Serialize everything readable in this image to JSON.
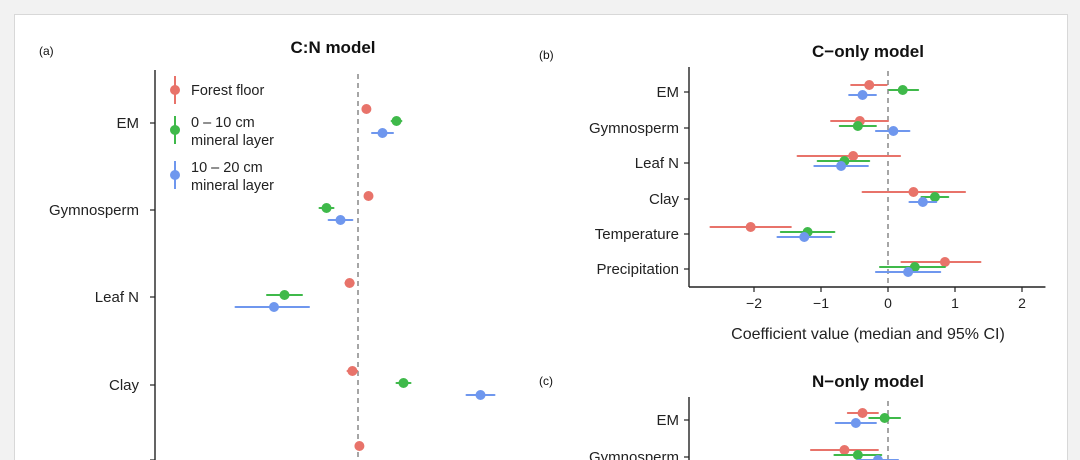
{
  "colors": {
    "forest_floor": "#e8736a",
    "mineral_0_10": "#3fb94a",
    "mineral_10_20": "#6f97ee"
  },
  "chart_data": [
    {
      "panel_label": "(a)",
      "type": "scatter",
      "title": "C:N model",
      "xlabel": "",
      "legend": {
        "placement": "top-left",
        "entries": [
          {
            "key": "forest_floor",
            "lines": [
              "Forest floor"
            ]
          },
          {
            "key": "mineral_0_10",
            "lines": [
              "0 – 10 cm",
              "mineral layer"
            ]
          },
          {
            "key": "mineral_10_20",
            "lines": [
              "10 – 20 cm",
              "mineral layer"
            ]
          }
        ]
      },
      "categories": [
        "EM",
        "Gymnosperm",
        "Leaf N",
        "Clay",
        ""
      ],
      "series": [
        {
          "key": "forest_floor",
          "values": [
            0.12,
            0.15,
            -0.12,
            -0.08,
            0.02
          ],
          "lower": [
            0.09,
            0.12,
            -0.18,
            -0.15,
            -0.02
          ],
          "upper": [
            0.15,
            0.18,
            -0.06,
            -0.01,
            0.06
          ]
        },
        {
          "key": "mineral_0_10",
          "values": [
            0.55,
            -0.45,
            -1.05,
            0.65
          ],
          "lower": [
            0.48,
            -0.55,
            -1.3,
            0.55
          ],
          "upper": [
            0.62,
            -0.35,
            -0.8,
            0.75
          ]
        },
        {
          "key": "mineral_10_20",
          "values": [
            0.35,
            -0.25,
            -1.2,
            1.75
          ],
          "lower": [
            0.2,
            -0.42,
            -1.75,
            1.55
          ],
          "upper": [
            0.5,
            -0.08,
            -0.7,
            1.95
          ]
        }
      ]
    },
    {
      "panel_label": "(b)",
      "type": "scatter",
      "title": "C−only model",
      "xlabel": "Coefficient value (median and 95% CI)",
      "xlim": [
        -2.7,
        2.35
      ],
      "xticks": [
        -2,
        -1,
        0,
        1,
        2
      ],
      "xtick_labels": [
        "−2",
        "−1",
        "0",
        "1",
        "2"
      ],
      "categories": [
        "EM",
        "Gymnosperm",
        "Leaf N",
        "Clay",
        "Temperature",
        "Precipitation"
      ],
      "series": [
        {
          "key": "forest_floor",
          "values": [
            -0.28,
            -0.42,
            -0.52,
            0.38,
            -2.05,
            0.85
          ],
          "lower": [
            -0.55,
            -0.85,
            -1.35,
            -0.38,
            -2.65,
            0.2
          ],
          "upper": [
            -0.02,
            0.0,
            0.18,
            1.15,
            -1.45,
            1.38
          ]
        },
        {
          "key": "mineral_0_10",
          "values": [
            0.22,
            -0.45,
            -0.65,
            0.7,
            -1.2,
            0.4
          ],
          "lower": [
            0.02,
            -0.72,
            -1.05,
            0.5,
            -1.6,
            -0.12
          ],
          "upper": [
            0.45,
            -0.18,
            -0.28,
            0.9,
            -0.8,
            0.85
          ]
        },
        {
          "key": "mineral_10_20",
          "values": [
            -0.38,
            0.08,
            -0.7,
            0.52,
            -1.25,
            0.3
          ],
          "lower": [
            -0.58,
            -0.18,
            -1.1,
            0.32,
            -1.65,
            -0.18
          ],
          "upper": [
            -0.18,
            0.32,
            -0.3,
            0.72,
            -0.85,
            0.78
          ]
        }
      ]
    },
    {
      "panel_label": "(c)",
      "type": "scatter",
      "title": "N−only model",
      "xlabel": "",
      "categories": [
        "EM",
        "Gymnosperm"
      ],
      "series": [
        {
          "key": "forest_floor",
          "values": [
            -0.38,
            -0.65
          ],
          "lower": [
            -0.6,
            -1.15
          ],
          "upper": [
            -0.15,
            -0.15
          ]
        },
        {
          "key": "mineral_0_10",
          "values": [
            -0.05,
            -0.45
          ],
          "lower": [
            -0.28,
            -0.8
          ],
          "upper": [
            0.18,
            -0.1
          ]
        },
        {
          "key": "mineral_10_20",
          "values": [
            -0.48,
            -0.15
          ],
          "lower": [
            -0.78,
            -0.45
          ],
          "upper": [
            -0.18,
            0.15
          ]
        }
      ]
    }
  ]
}
